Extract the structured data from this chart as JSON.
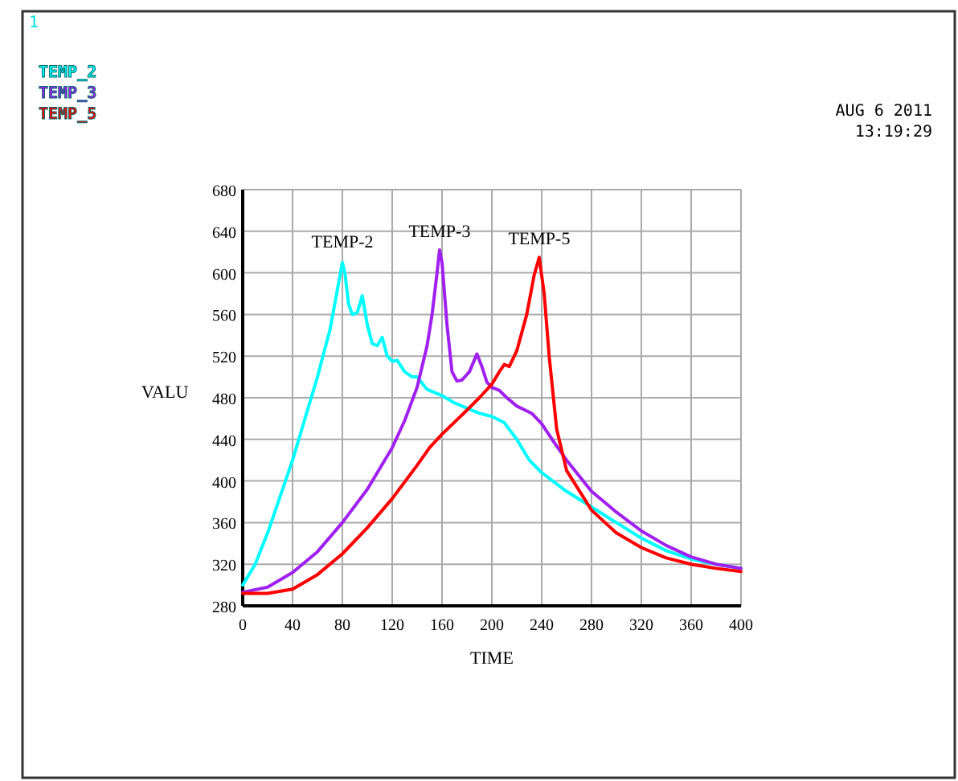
{
  "chart_data": {
    "type": "line",
    "xlabel": "TIME",
    "ylabel": "VALU",
    "xlim": [
      0,
      400
    ],
    "xticks": [
      0,
      40,
      80,
      120,
      160,
      200,
      240,
      280,
      320,
      360,
      400
    ],
    "ylim": [
      280,
      680
    ],
    "yticks": [
      280,
      320,
      360,
      400,
      440,
      480,
      520,
      560,
      600,
      640,
      680
    ],
    "grid": true,
    "legend": "top left",
    "marker": "none",
    "line_style": "solid",
    "annotations": [
      "1",
      "AUG  6 2011",
      "13:19:29",
      {
        "text": "TEMP-2",
        "x": 80,
        "y": 612
      },
      {
        "text": "TEMP-3",
        "x": 158,
        "y": 622
      },
      {
        "text": "TEMP-5",
        "x": 238,
        "y": 615
      }
    ],
    "series": [
      {
        "name": "TEMP_2",
        "color": "#00ffff",
        "x": [
          0,
          10,
          20,
          40,
          60,
          70,
          80,
          82,
          85,
          88,
          92,
          96,
          100,
          104,
          108,
          112,
          116,
          120,
          124,
          130,
          136,
          140,
          148,
          160,
          170,
          180,
          190,
          200,
          210,
          220,
          230,
          240,
          260,
          280,
          300,
          320,
          340,
          360,
          380,
          400
        ],
        "values": [
          300,
          320,
          350,
          420,
          500,
          545,
          610,
          600,
          570,
          560,
          562,
          578,
          550,
          532,
          530,
          538,
          520,
          515,
          516,
          505,
          500,
          500,
          488,
          482,
          475,
          470,
          465,
          462,
          456,
          440,
          420,
          408,
          390,
          375,
          360,
          345,
          333,
          325,
          320,
          316
        ]
      },
      {
        "name": "TEMP_3",
        "color": "#a020f0",
        "x": [
          0,
          20,
          40,
          60,
          80,
          100,
          120,
          130,
          140,
          148,
          152,
          156,
          158,
          160,
          164,
          168,
          172,
          176,
          182,
          188,
          192,
          196,
          200,
          206,
          212,
          220,
          232,
          240,
          250,
          260,
          280,
          300,
          320,
          340,
          360,
          380,
          400
        ],
        "values": [
          293,
          298,
          312,
          332,
          360,
          392,
          432,
          458,
          490,
          530,
          560,
          600,
          622,
          610,
          550,
          505,
          496,
          497,
          505,
          522,
          510,
          495,
          490,
          487,
          480,
          472,
          465,
          455,
          437,
          420,
          390,
          370,
          352,
          338,
          327,
          320,
          316
        ]
      },
      {
        "name": "TEMP_5",
        "color": "#ff0000",
        "x": [
          0,
          20,
          40,
          60,
          80,
          100,
          120,
          140,
          150,
          160,
          180,
          190,
          200,
          206,
          210,
          214,
          220,
          228,
          234,
          238,
          242,
          246,
          252,
          260,
          280,
          300,
          320,
          340,
          360,
          380,
          400
        ],
        "values": [
          292,
          292,
          296,
          310,
          330,
          355,
          383,
          415,
          432,
          445,
          468,
          480,
          493,
          505,
          512,
          510,
          525,
          560,
          598,
          615,
          580,
          520,
          450,
          410,
          372,
          350,
          336,
          326,
          320,
          316,
          313
        ]
      }
    ]
  }
}
